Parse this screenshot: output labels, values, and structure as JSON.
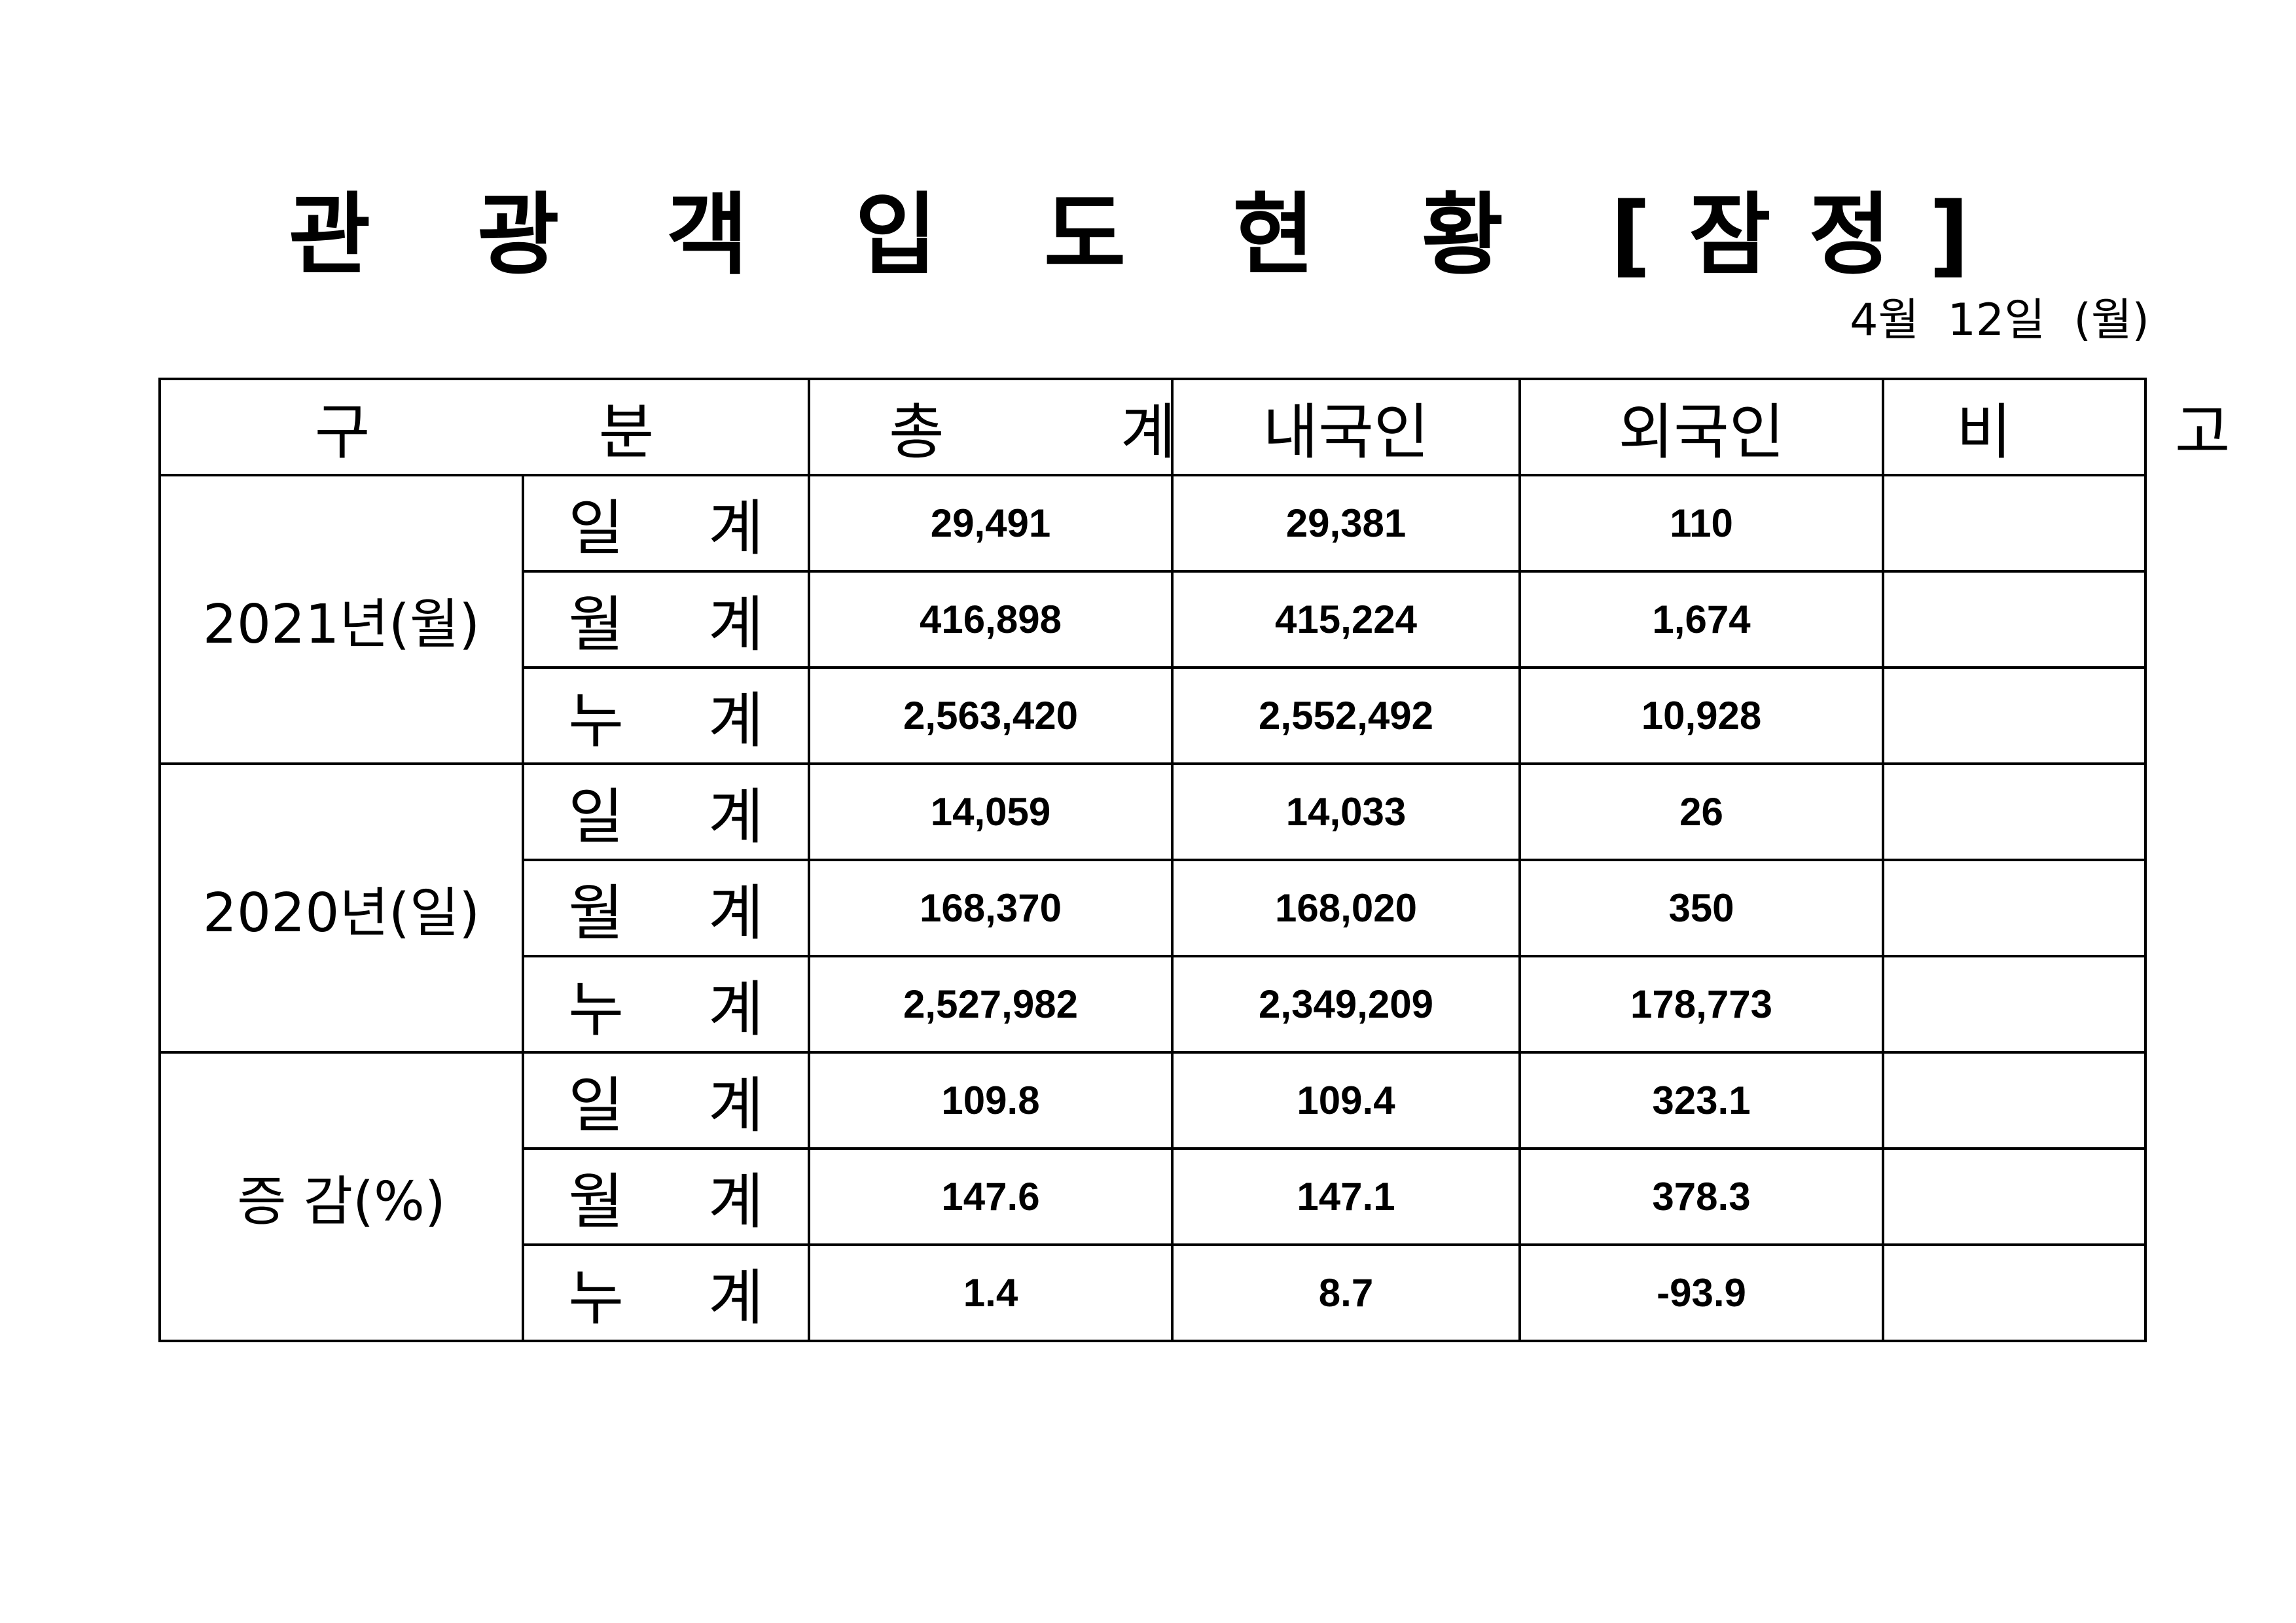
{
  "title": "관 광 객 입 도 현 황 [잠정]",
  "date": "4월 12일 (월)",
  "headers": {
    "category": "구 분",
    "total": "총 계",
    "domestic": "내국인",
    "foreign": "외국인",
    "note": "비 고"
  },
  "groups": [
    {
      "label": "2021년(월)",
      "rows": [
        {
          "sub": "일 계",
          "total": "29,491",
          "domestic": "29,381",
          "foreign": "110",
          "note": ""
        },
        {
          "sub": "월 계",
          "total": "416,898",
          "domestic": "415,224",
          "foreign": "1,674",
          "note": ""
        },
        {
          "sub": "누 계",
          "total": "2,563,420",
          "domestic": "2,552,492",
          "foreign": "10,928",
          "note": ""
        }
      ]
    },
    {
      "label": "2020년(일)",
      "rows": [
        {
          "sub": "일 계",
          "total": "14,059",
          "domestic": "14,033",
          "foreign": "26",
          "note": ""
        },
        {
          "sub": "월 계",
          "total": "168,370",
          "domestic": "168,020",
          "foreign": "350",
          "note": ""
        },
        {
          "sub": "누 계",
          "total": "2,527,982",
          "domestic": "2,349,209",
          "foreign": "178,773",
          "note": ""
        }
      ]
    },
    {
      "label": "증 감(%)",
      "rows": [
        {
          "sub": "일 계",
          "total": "109.8",
          "domestic": "109.4",
          "foreign": "323.1",
          "note": ""
        },
        {
          "sub": "월 계",
          "total": "147.6",
          "domestic": "147.1",
          "foreign": "378.3",
          "note": ""
        },
        {
          "sub": "누 계",
          "total": "1.4",
          "domestic": "8.7",
          "foreign": "-93.9",
          "note": ""
        }
      ]
    }
  ]
}
